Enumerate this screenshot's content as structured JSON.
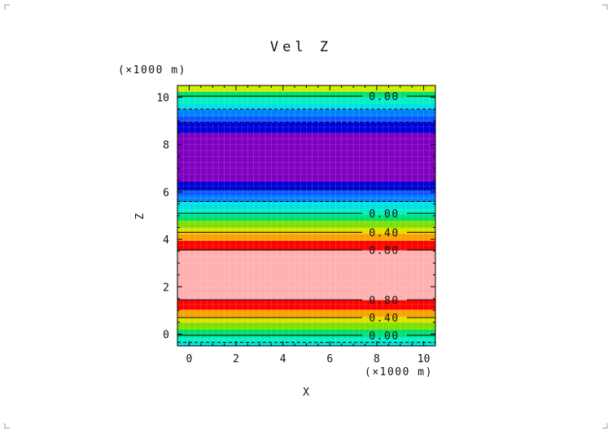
{
  "chart_data": {
    "type": "heatmap",
    "title": "Vel Z",
    "xlabel": "X",
    "ylabel": "Z",
    "x_unit": "(×1000 m)",
    "y_unit": "(×1000 m)",
    "xlim": [
      -0.5,
      10.5
    ],
    "ylim": [
      -0.5,
      10.5
    ],
    "x_ticks": [
      0,
      2,
      4,
      6,
      8,
      10
    ],
    "y_ticks": [
      0,
      2,
      4,
      6,
      8,
      10
    ],
    "x_tick_labels": [
      "0",
      "2",
      "4",
      "6",
      "8",
      "10"
    ],
    "y_tick_labels": [
      "0",
      "2",
      "4",
      "6",
      "8",
      "10"
    ],
    "bands": [
      {
        "z0": -0.5,
        "z1": -0.35,
        "color": "#00e0e0"
      },
      {
        "z0": -0.35,
        "z1": -0.1,
        "color": "#00f0c8"
      },
      {
        "z0": -0.1,
        "z1": 0.2,
        "color": "#00e070"
      },
      {
        "z0": 0.2,
        "z1": 0.5,
        "color": "#7fe000"
      },
      {
        "z0": 0.5,
        "z1": 0.75,
        "color": "#e0e000"
      },
      {
        "z0": 0.75,
        "z1": 1.05,
        "color": "#ffa000"
      },
      {
        "z0": 1.05,
        "z1": 1.45,
        "color": "#ff0000"
      },
      {
        "z0": 1.45,
        "z1": 3.55,
        "color": "#ffb0b0"
      },
      {
        "z0": 3.55,
        "z1": 3.95,
        "color": "#ff0000"
      },
      {
        "z0": 3.95,
        "z1": 4.25,
        "color": "#ffa000"
      },
      {
        "z0": 4.25,
        "z1": 4.5,
        "color": "#e0e000"
      },
      {
        "z0": 4.5,
        "z1": 4.8,
        "color": "#7fe000"
      },
      {
        "z0": 4.8,
        "z1": 5.05,
        "color": "#00e070"
      },
      {
        "z0": 5.05,
        "z1": 5.3,
        "color": "#00f0c8"
      },
      {
        "z0": 5.3,
        "z1": 5.6,
        "color": "#00e0e0"
      },
      {
        "z0": 5.6,
        "z1": 5.9,
        "color": "#0080ff"
      },
      {
        "z0": 5.9,
        "z1": 6.1,
        "color": "#1050ff"
      },
      {
        "z0": 6.1,
        "z1": 6.45,
        "color": "#0000d8"
      },
      {
        "z0": 6.45,
        "z1": 8.5,
        "color": "#8000c0"
      },
      {
        "z0": 8.5,
        "z1": 8.95,
        "color": "#0000d8"
      },
      {
        "z0": 8.95,
        "z1": 9.2,
        "color": "#1050ff"
      },
      {
        "z0": 9.2,
        "z1": 9.5,
        "color": "#0080ff"
      },
      {
        "z0": 9.5,
        "z1": 9.75,
        "color": "#00e0e0"
      },
      {
        "z0": 9.75,
        "z1": 10.0,
        "color": "#00f0c8"
      },
      {
        "z0": 10.0,
        "z1": 10.25,
        "color": "#00e070"
      },
      {
        "z0": 10.25,
        "z1": 10.5,
        "color": "#d0f000"
      }
    ],
    "contours": [
      {
        "z": 10.05,
        "label": "0.00",
        "dashed": false
      },
      {
        "z": 9.5,
        "label": "",
        "dashed": true
      },
      {
        "z": 8.95,
        "label": "",
        "dashed": true
      },
      {
        "z": 6.1,
        "label": "",
        "dashed": true
      },
      {
        "z": 5.6,
        "label": "",
        "dashed": true
      },
      {
        "z": 5.1,
        "label": "0.00",
        "dashed": false
      },
      {
        "z": 4.3,
        "label": "0.40",
        "dashed": false
      },
      {
        "z": 3.55,
        "label": "0.80",
        "dashed": false
      },
      {
        "z": 1.45,
        "label": "0.80",
        "dashed": false
      },
      {
        "z": 0.7,
        "label": "0.40",
        "dashed": false
      },
      {
        "z": -0.05,
        "label": "0.00",
        "dashed": false
      },
      {
        "z": -0.35,
        "label": "",
        "dashed": true
      }
    ],
    "grid": true
  }
}
